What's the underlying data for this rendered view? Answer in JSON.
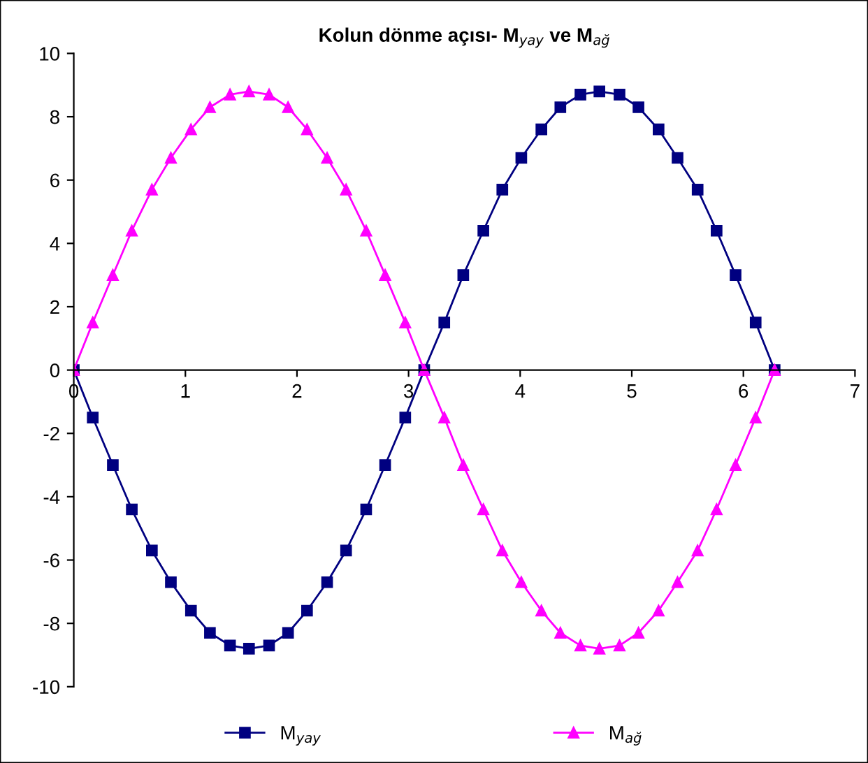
{
  "chart_data": {
    "type": "line",
    "title": "Kolun dönme açısı- M$_{yay}$ ve M$_{ağ}$",
    "x": [
      0,
      0.17,
      0.35,
      0.52,
      0.7,
      0.87,
      1.05,
      1.22,
      1.4,
      1.57,
      1.75,
      1.92,
      2.09,
      2.27,
      2.44,
      2.62,
      2.79,
      2.97,
      3.14,
      3.32,
      3.49,
      3.67,
      3.84,
      4.01,
      4.19,
      4.36,
      4.54,
      4.71,
      4.89,
      5.06,
      5.24,
      5.41,
      5.59,
      5.76,
      5.93,
      6.11,
      6.28
    ],
    "series": [
      {
        "name": "M$_{yay}$",
        "color": "#000080",
        "marker": "square",
        "values": [
          0,
          -1.5,
          -3.0,
          -4.4,
          -5.7,
          -6.7,
          -7.6,
          -8.3,
          -8.7,
          -8.8,
          -8.7,
          -8.3,
          -7.6,
          -6.7,
          -5.7,
          -4.4,
          -3.0,
          -1.5,
          0,
          1.5,
          3.0,
          4.4,
          5.7,
          6.7,
          7.6,
          8.3,
          8.7,
          8.8,
          8.7,
          8.3,
          7.6,
          6.7,
          5.7,
          4.4,
          3.0,
          1.5,
          0
        ]
      },
      {
        "name": "M$_{ağ}$",
        "color": "#ff00ff",
        "marker": "triangle",
        "values": [
          0,
          1.5,
          3.0,
          4.4,
          5.7,
          6.7,
          7.6,
          8.3,
          8.7,
          8.8,
          8.7,
          8.3,
          7.6,
          6.7,
          5.7,
          4.4,
          3.0,
          1.5,
          0,
          -1.5,
          -3.0,
          -4.4,
          -5.7,
          -6.7,
          -7.6,
          -8.3,
          -8.7,
          -8.8,
          -8.7,
          -8.3,
          -7.6,
          -6.7,
          -5.7,
          -4.4,
          -3.0,
          -1.5,
          0
        ]
      }
    ],
    "xlim": [
      0,
      7
    ],
    "xticks": [
      0,
      1,
      2,
      3,
      4,
      5,
      6,
      7
    ],
    "ylim": [
      -10,
      10
    ],
    "yticks": [
      -10,
      -8,
      -6,
      -4,
      -2,
      0,
      2,
      4,
      6,
      8,
      10
    ],
    "grid": false,
    "legend": "bottom",
    "line_style": "solid"
  }
}
